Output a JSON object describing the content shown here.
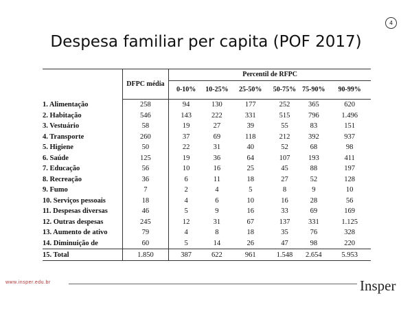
{
  "page_number": "4",
  "title": "Despesa familiar per capita (POF 2017)",
  "table": {
    "header": {
      "mean": "DFPC média",
      "group": "Percentil de RFPC",
      "percentiles": [
        "0-10%",
        "10-25%",
        "25-50%",
        "50-75%",
        "75-90%",
        "90-99%"
      ]
    },
    "rows": [
      [
        "1. Alimentação",
        "258",
        "94",
        "130",
        "177",
        "252",
        "365",
        "620"
      ],
      [
        "2. Habitação",
        "546",
        "143",
        "222",
        "331",
        "515",
        "796",
        "1.496"
      ],
      [
        "3. Vestuário",
        "58",
        "19",
        "27",
        "39",
        "55",
        "83",
        "151"
      ],
      [
        "4. Transporte",
        "260",
        "37",
        "69",
        "118",
        "212",
        "392",
        "937"
      ],
      [
        "5. Higiene",
        "50",
        "22",
        "31",
        "40",
        "52",
        "68",
        "98"
      ],
      [
        "6. Saúde",
        "125",
        "19",
        "36",
        "64",
        "107",
        "193",
        "411"
      ],
      [
        "7. Educação",
        "56",
        "10",
        "16",
        "25",
        "45",
        "88",
        "197"
      ],
      [
        "8. Recreação",
        "36",
        "6",
        "11",
        "18",
        "27",
        "52",
        "128"
      ],
      [
        "9. Fumo",
        "7",
        "2",
        "4",
        "5",
        "8",
        "9",
        "10"
      ],
      [
        "10. Serviços pessoais",
        "18",
        "4",
        "6",
        "10",
        "16",
        "28",
        "56"
      ],
      [
        "11. Despesas diversas",
        "46",
        "5",
        "9",
        "16",
        "33",
        "69",
        "169"
      ],
      [
        "12. Outras despesas",
        "245",
        "12",
        "31",
        "67",
        "137",
        "331",
        "1.125"
      ],
      [
        "13. Aumento de ativo",
        "79",
        "4",
        "8",
        "18",
        "35",
        "76",
        "328"
      ],
      [
        "14. Diminuição de",
        "60",
        "5",
        "14",
        "26",
        "47",
        "98",
        "220"
      ],
      [
        "15. Total",
        "1.850",
        "387",
        "622",
        "961",
        "1.548",
        "2.654",
        "5.953"
      ]
    ]
  },
  "footer": {
    "url": "www.insper.edu.br",
    "logo": "Insper"
  }
}
